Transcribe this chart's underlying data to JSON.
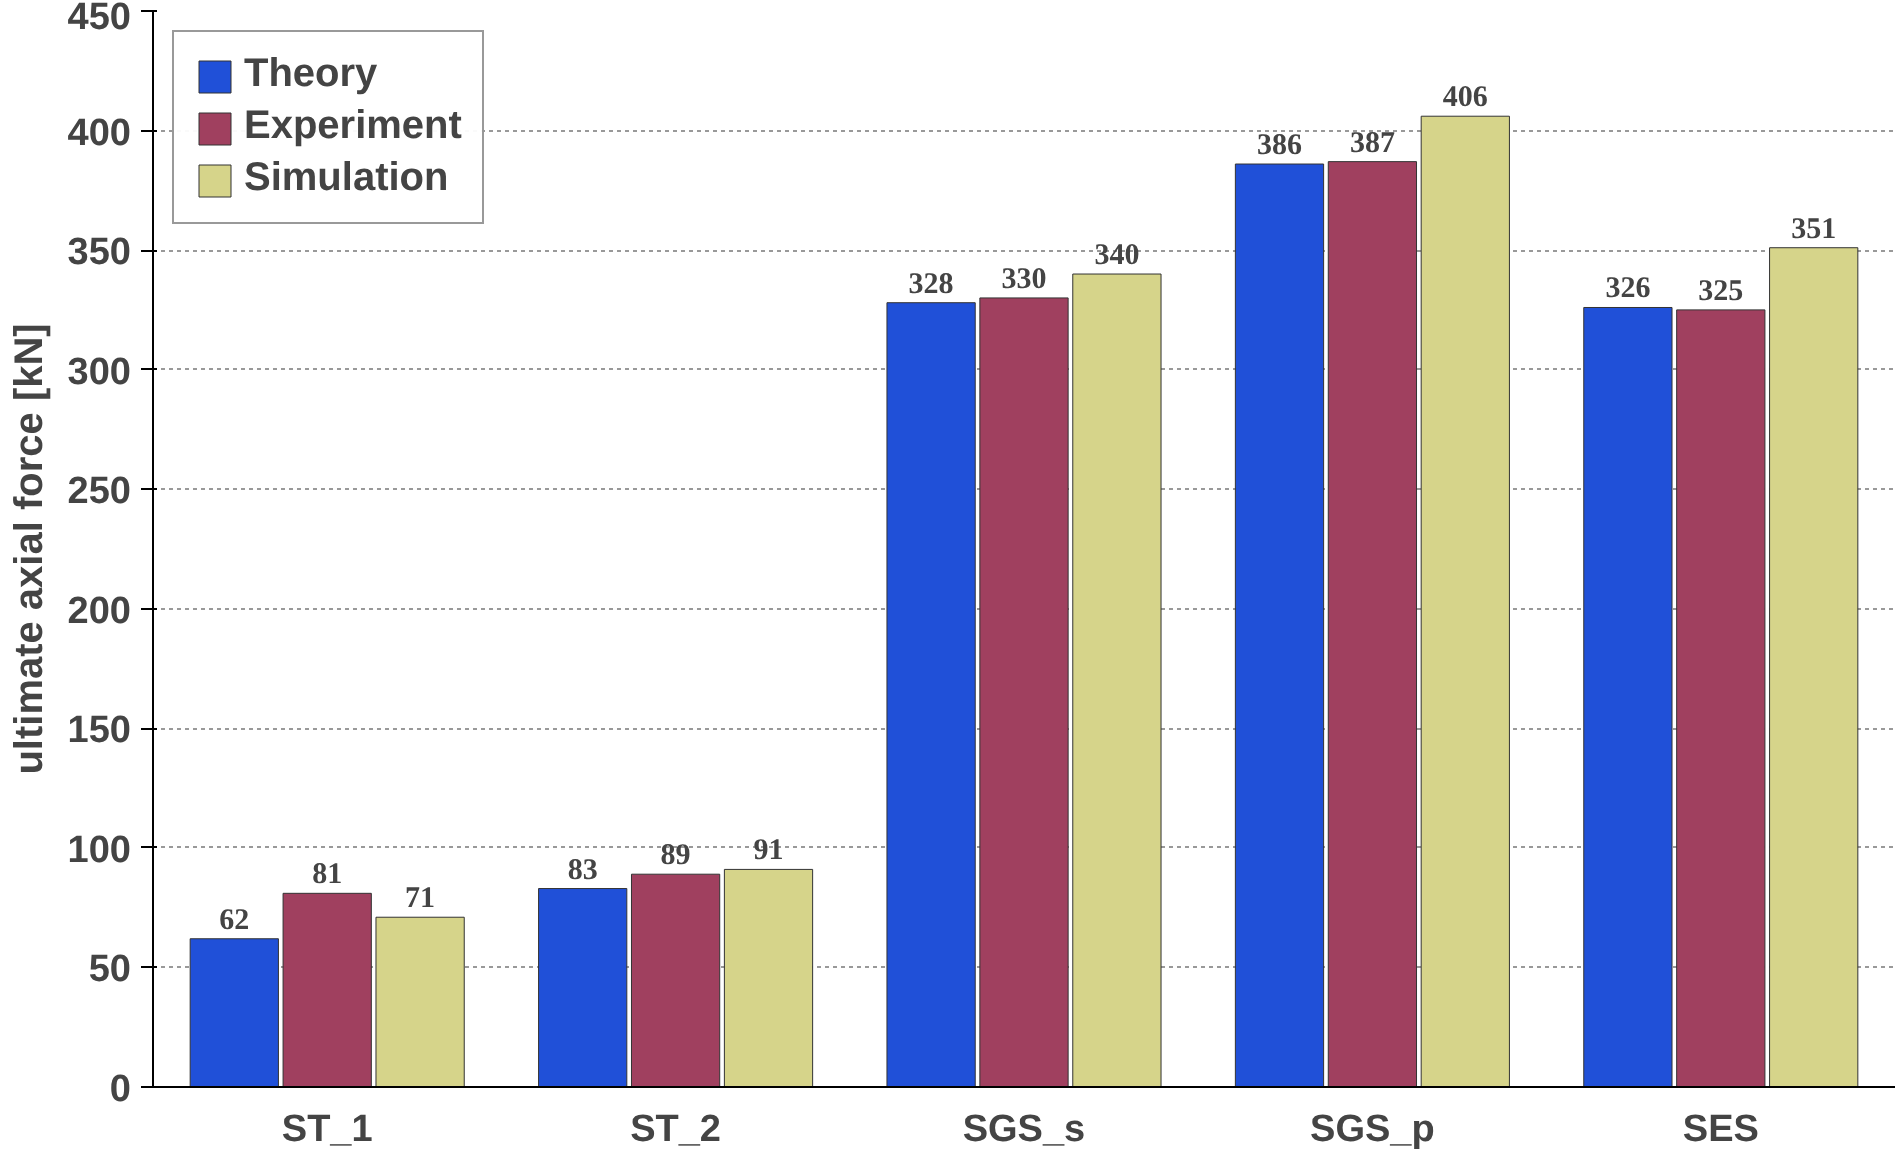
{
  "chart_data": {
    "type": "bar",
    "ylabel": "ultimate axial force [kN]",
    "categories": [
      "ST_1",
      "ST_2",
      "SGS_s",
      "SGS_p",
      "SES"
    ],
    "series": [
      {
        "name": "Theory",
        "color": "#2050d8",
        "values": [
          62,
          83,
          328,
          386,
          326
        ]
      },
      {
        "name": "Experiment",
        "color": "#a0405f",
        "values": [
          81,
          89,
          330,
          387,
          325
        ]
      },
      {
        "name": "Simulation",
        "color": "#d6d48a",
        "values": [
          71,
          91,
          340,
          406,
          351
        ]
      }
    ],
    "ylim": [
      0,
      450
    ],
    "yticks": [
      0,
      50,
      100,
      150,
      200,
      250,
      300,
      350,
      400,
      450
    ],
    "grid": "y",
    "legend": "top left",
    "data_labels": true
  }
}
